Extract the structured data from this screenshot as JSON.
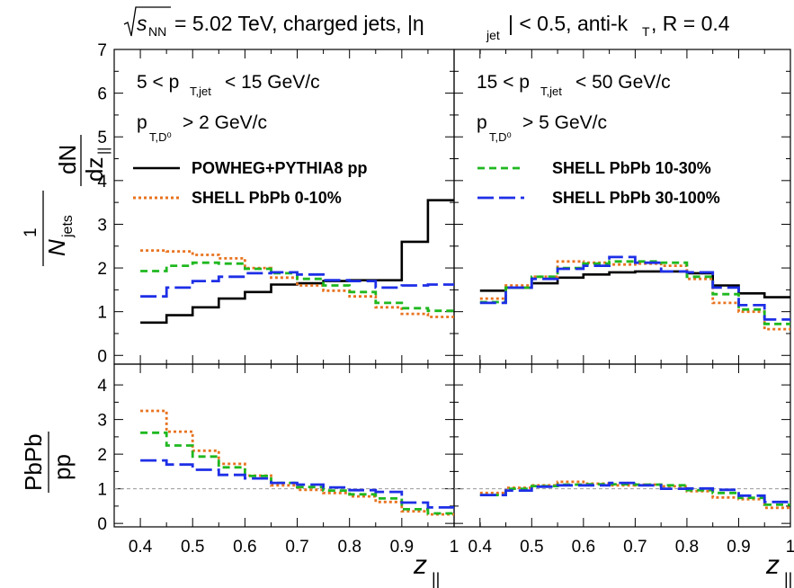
{
  "header": {
    "sqrt_s": "s",
    "sqrt_s_sub": "NN",
    "energy": "= 5.02 TeV, charged jets, |η",
    "eta_sub": "jet",
    "cuts": "| < 0.5, anti-k",
    "kt_sub": "T",
    "radius": ", R = 0.4"
  },
  "panels": {
    "left_pt": {
      "pre": "5 < p",
      "sub": "T,jet",
      "post": " < 15 GeV/c"
    },
    "left_d0": {
      "pre": "p",
      "sub": "T,D⁰",
      "post": " > 2 GeV/c"
    },
    "right_pt": {
      "pre": "15 < p",
      "sub": "T,jet",
      "post": " < 50 GeV/c"
    },
    "right_d0": {
      "pre": "p",
      "sub": "T,D⁰",
      "post": " > 5 GeV/c"
    }
  },
  "axes": {
    "ylabel_top_num": "1",
    "ylabel_top_den": "N",
    "ylabel_top_den_sub": "jets",
    "ylabel_top_dn": "dN",
    "ylabel_top_dz": "dz",
    "ylabel_top_dz_sub": "||",
    "ylabel_bottom_num": "PbPb",
    "ylabel_bottom_den": "pp",
    "xlabel": "z",
    "xlabel_sub": "||",
    "top_yticks": [
      "0",
      "1",
      "2",
      "3",
      "4",
      "5",
      "6",
      "7"
    ],
    "bottom_yticks": [
      "0",
      "1",
      "2",
      "3",
      "4"
    ],
    "xticks": [
      "0.4",
      "0.5",
      "0.6",
      "0.7",
      "0.8",
      "0.9",
      "1"
    ]
  },
  "legend": [
    {
      "label": "POWHEG+PYTHIA8 pp",
      "color": "#000000",
      "style": "solid"
    },
    {
      "label": "SHELL PbPb 0-10%",
      "color": "#e8731f",
      "style": "dotted"
    },
    {
      "label": "SHELL PbPb 10-30%",
      "color": "#1fb81f",
      "style": "short-dash"
    },
    {
      "label": "SHELL PbPb 30-100%",
      "color": "#1e2fe6",
      "style": "long-dash"
    }
  ],
  "chart_data": [
    {
      "type": "line",
      "panel": "left-top",
      "xlim": [
        0.35,
        1.0
      ],
      "ylim": [
        -0.2,
        7
      ],
      "bin_edges": [
        0.4,
        0.45,
        0.5,
        0.55,
        0.6,
        0.65,
        0.7,
        0.75,
        0.8,
        0.85,
        0.9,
        0.95,
        1.0
      ],
      "series": [
        {
          "name": "POWHEG+PYTHIA8 pp",
          "values": [
            0.75,
            0.92,
            1.1,
            1.3,
            1.45,
            1.62,
            1.65,
            1.7,
            1.72,
            1.72,
            2.6,
            3.55
          ]
        },
        {
          "name": "SHELL PbPb 0-10%",
          "values": [
            2.4,
            2.38,
            2.3,
            2.22,
            2.0,
            1.78,
            1.6,
            1.48,
            1.35,
            1.1,
            0.95,
            0.88
          ]
        },
        {
          "name": "SHELL PbPb 10-30%",
          "values": [
            1.93,
            2.05,
            2.12,
            2.1,
            1.98,
            1.88,
            1.75,
            1.6,
            1.45,
            1.2,
            1.08,
            1.02
          ]
        },
        {
          "name": "SHELL PbPb 30-100%",
          "values": [
            1.35,
            1.55,
            1.7,
            1.8,
            1.88,
            1.9,
            1.85,
            1.72,
            1.7,
            1.55,
            1.6,
            1.62
          ]
        }
      ]
    },
    {
      "type": "line",
      "panel": "right-top",
      "xlim": [
        0.35,
        1.0
      ],
      "ylim": [
        -0.2,
        7
      ],
      "bin_edges": [
        0.4,
        0.45,
        0.5,
        0.55,
        0.6,
        0.65,
        0.7,
        0.75,
        0.8,
        0.85,
        0.9,
        0.95,
        1.0
      ],
      "series": [
        {
          "name": "POWHEG+PYTHIA8 pp",
          "values": [
            1.48,
            1.55,
            1.65,
            1.78,
            1.85,
            1.9,
            1.92,
            1.92,
            1.88,
            1.6,
            1.42,
            1.33
          ]
        },
        {
          "name": "SHELL PbPb 0-10%",
          "values": [
            1.3,
            1.6,
            1.8,
            2.15,
            2.12,
            2.08,
            2.1,
            2.05,
            1.75,
            1.2,
            1.0,
            0.6
          ]
        },
        {
          "name": "SHELL PbPb 10-30%",
          "values": [
            1.22,
            1.55,
            1.8,
            2.0,
            2.1,
            2.15,
            2.15,
            2.12,
            1.8,
            1.4,
            1.05,
            0.72
          ]
        },
        {
          "name": "SHELL PbPb 30-100%",
          "values": [
            1.2,
            1.55,
            1.75,
            1.98,
            2.05,
            2.25,
            2.12,
            1.92,
            1.9,
            1.55,
            1.15,
            0.82
          ]
        }
      ]
    },
    {
      "type": "line",
      "panel": "left-bottom",
      "xlim": [
        0.35,
        1.0
      ],
      "ylim": [
        -0.1,
        4.6
      ],
      "reference_line": 1,
      "bin_edges": [
        0.4,
        0.45,
        0.5,
        0.55,
        0.6,
        0.65,
        0.7,
        0.75,
        0.8,
        0.85,
        0.9,
        0.95,
        1.0
      ],
      "series": [
        {
          "name": "SHELL PbPb 0-10%",
          "values": [
            3.25,
            2.65,
            2.1,
            1.72,
            1.38,
            1.1,
            0.97,
            0.88,
            0.78,
            0.62,
            0.35,
            0.26
          ]
        },
        {
          "name": "SHELL PbPb 10-30%",
          "values": [
            2.62,
            2.25,
            1.93,
            1.62,
            1.37,
            1.17,
            1.05,
            0.95,
            0.84,
            0.72,
            0.41,
            0.29
          ]
        },
        {
          "name": "SHELL PbPb 30-100%",
          "values": [
            1.82,
            1.7,
            1.55,
            1.4,
            1.3,
            1.17,
            1.12,
            1.04,
            0.96,
            0.91,
            0.6,
            0.46
          ]
        }
      ]
    },
    {
      "type": "line",
      "panel": "right-bottom",
      "xlim": [
        0.35,
        1.0
      ],
      "ylim": [
        -0.1,
        4.6
      ],
      "reference_line": 1,
      "bin_edges": [
        0.4,
        0.45,
        0.5,
        0.55,
        0.6,
        0.65,
        0.7,
        0.75,
        0.8,
        0.85,
        0.9,
        0.95,
        1.0
      ],
      "series": [
        {
          "name": "SHELL PbPb 0-10%",
          "values": [
            0.88,
            1.03,
            1.1,
            1.2,
            1.15,
            1.1,
            1.12,
            1.07,
            0.93,
            0.75,
            0.7,
            0.45
          ]
        },
        {
          "name": "SHELL PbPb 10-30%",
          "values": [
            0.82,
            1.0,
            1.08,
            1.12,
            1.13,
            1.13,
            1.12,
            1.1,
            0.96,
            0.88,
            0.74,
            0.54
          ]
        },
        {
          "name": "SHELL PbPb 30-100%",
          "values": [
            0.82,
            0.95,
            1.06,
            1.1,
            1.1,
            1.17,
            1.1,
            1.0,
            1.01,
            0.97,
            0.8,
            0.62
          ]
        }
      ]
    }
  ]
}
